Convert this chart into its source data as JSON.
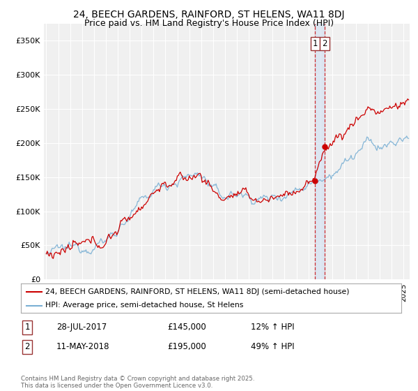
{
  "title": "24, BEECH GARDENS, RAINFORD, ST HELENS, WA11 8DJ",
  "subtitle": "Price paid vs. HM Land Registry's House Price Index (HPI)",
  "legend_line1": "24, BEECH GARDENS, RAINFORD, ST HELENS, WA11 8DJ (semi-detached house)",
  "legend_line2": "HPI: Average price, semi-detached house, St Helens",
  "annotation1_num": "1",
  "annotation1_date": "28-JUL-2017",
  "annotation1_price": "£145,000",
  "annotation1_hpi": "12% ↑ HPI",
  "annotation2_num": "2",
  "annotation2_date": "11-MAY-2018",
  "annotation2_price": "£195,000",
  "annotation2_hpi": "49% ↑ HPI",
  "footer": "Contains HM Land Registry data © Crown copyright and database right 2025.\nThis data is licensed under the Open Government Licence v3.0.",
  "sale1_year": 2017.57,
  "sale1_price": 145000,
  "sale2_year": 2018.36,
  "sale2_price": 195000,
  "vline1_x": 2017.57,
  "vline2_x": 2018.36,
  "ylim_min": 0,
  "ylim_max": 375000,
  "xlim_min": 1994.8,
  "xlim_max": 2025.5,
  "red_color": "#cc0000",
  "blue_color": "#7ab0d4",
  "background_color": "#f0f0f0",
  "grid_color": "#ffffff",
  "title_fontsize": 10,
  "subtitle_fontsize": 9
}
